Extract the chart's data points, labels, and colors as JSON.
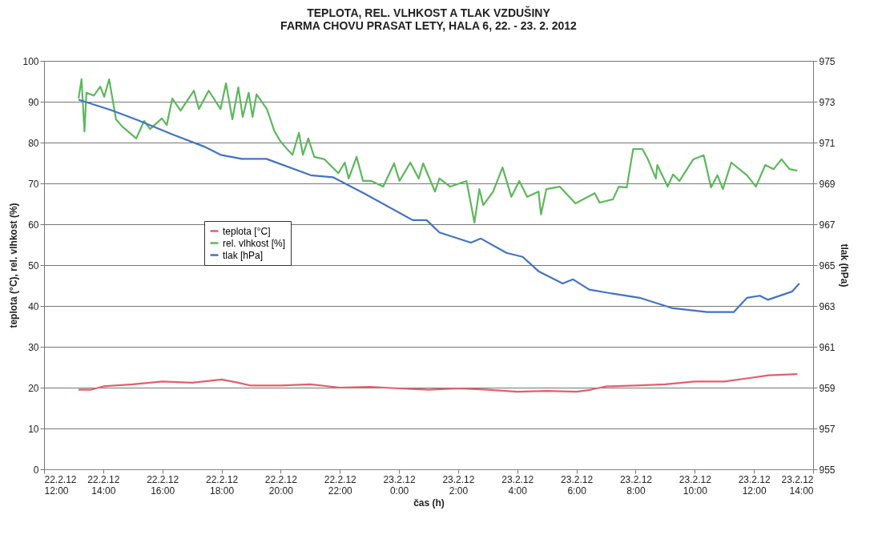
{
  "chart_data": {
    "type": "line",
    "title": [
      "TEPLOTA, REL. VLHKOST A TLAK VZDUŠINY",
      "FARMA CHOVU PRASAT LETY, HALA 6,  22. - 23. 2. 2012"
    ],
    "xlabel": "čas (h)",
    "ylabel": "teplota (°C), rel. vlhkost (%)",
    "y2label": "tlak (hPa)",
    "xlim": [
      "2012-02-22T12:00",
      "2012-02-23T14:00"
    ],
    "xticks": [
      {
        "value": "2012-02-22T12:00",
        "label": "22.2.12\n12:00"
      },
      {
        "value": "2012-02-22T14:00",
        "label": "22.2.12\n14:00"
      },
      {
        "value": "2012-02-22T16:00",
        "label": "22.2.12\n16:00"
      },
      {
        "value": "2012-02-22T18:00",
        "label": "22.2.12\n18:00"
      },
      {
        "value": "2012-02-22T20:00",
        "label": "22.2.12\n20:00"
      },
      {
        "value": "2012-02-22T22:00",
        "label": "22.2.12\n22:00"
      },
      {
        "value": "2012-02-23T00:00",
        "label": "23.2.12\n0:00"
      },
      {
        "value": "2012-02-23T02:00",
        "label": "23.2.12\n2:00"
      },
      {
        "value": "2012-02-23T04:00",
        "label": "23.2.12\n4:00"
      },
      {
        "value": "2012-02-23T06:00",
        "label": "23.2.12\n6:00"
      },
      {
        "value": "2012-02-23T08:00",
        "label": "23.2.12\n8:00"
      },
      {
        "value": "2012-02-23T10:00",
        "label": "23.2.12\n10:00"
      },
      {
        "value": "2012-02-23T12:00",
        "label": "23.2.12\n12:00"
      },
      {
        "value": "2012-02-23T14:00",
        "label": "23.2.12\n14:00"
      }
    ],
    "ylim": [
      0,
      100
    ],
    "yticks": [
      0,
      10,
      20,
      30,
      40,
      50,
      60,
      70,
      80,
      90,
      100
    ],
    "y2lim": [
      955,
      975
    ],
    "y2ticks": [
      955,
      957,
      959,
      961,
      963,
      965,
      967,
      969,
      971,
      973,
      975
    ],
    "grid": "y",
    "legend": "left",
    "line_style": "solid",
    "marker": "none",
    "series": [
      {
        "name": "teplota [°C]",
        "color": "#e0606e",
        "x": [
          "2012-02-22T13:10",
          "2012-02-22T13:36",
          "2012-02-22T14:00",
          "2012-02-22T15:00",
          "2012-02-22T16:00",
          "2012-02-22T17:00",
          "2012-02-22T18:00",
          "2012-02-22T18:30",
          "2012-02-22T19:00",
          "2012-02-22T20:00",
          "2012-02-22T21:00",
          "2012-02-22T22:00",
          "2012-02-22T23:00",
          "2012-02-23T00:00",
          "2012-02-23T01:00",
          "2012-02-23T02:00",
          "2012-02-23T03:00",
          "2012-02-23T04:00",
          "2012-02-23T05:00",
          "2012-02-23T06:00",
          "2012-02-23T06:30",
          "2012-02-23T07:00",
          "2012-02-23T08:00",
          "2012-02-23T09:00",
          "2012-02-23T10:00",
          "2012-02-23T11:00",
          "2012-02-23T12:00",
          "2012-02-23T12:30",
          "2012-02-23T13:28"
        ],
        "values": [
          19.5,
          19.5,
          20.3,
          20.8,
          21.5,
          21.2,
          22,
          21.3,
          20.5,
          20.5,
          20.8,
          20,
          20.2,
          19.8,
          19.5,
          19.8,
          19.5,
          19,
          19.2,
          19,
          19.5,
          20.3,
          20.5,
          20.8,
          21.5,
          21.5,
          22.5,
          23,
          23.3
        ]
      },
      {
        "name": "rel. vlhkost [%]",
        "color": "#5cb85c",
        "x": [
          "2012-02-22T13:10",
          "2012-02-22T13:16",
          "2012-02-22T13:22",
          "2012-02-22T13:26",
          "2012-02-22T13:41",
          "2012-02-22T13:54",
          "2012-02-22T14:02",
          "2012-02-22T14:12",
          "2012-02-22T14:26",
          "2012-02-22T14:38",
          "2012-02-22T15:07",
          "2012-02-22T15:23",
          "2012-02-22T15:35",
          "2012-02-22T15:59",
          "2012-02-22T16:09",
          "2012-02-22T16:20",
          "2012-02-22T16:37",
          "2012-02-22T17:04",
          "2012-02-22T17:14",
          "2012-02-22T17:34",
          "2012-02-22T17:58",
          "2012-02-22T18:09",
          "2012-02-22T18:22",
          "2012-02-22T18:34",
          "2012-02-22T18:43",
          "2012-02-22T18:55",
          "2012-02-22T19:03",
          "2012-02-22T19:11",
          "2012-02-22T19:32",
          "2012-02-22T19:47",
          "2012-02-22T19:59",
          "2012-02-22T20:13",
          "2012-02-22T20:24",
          "2012-02-22T20:37",
          "2012-02-22T20:45",
          "2012-02-22T20:56",
          "2012-02-22T21:08",
          "2012-02-22T21:29",
          "2012-02-22T21:57",
          "2012-02-22T22:10",
          "2012-02-22T22:18",
          "2012-02-22T22:34",
          "2012-02-22T22:47",
          "2012-02-22T23:04",
          "2012-02-22T23:28",
          "2012-02-22T23:50",
          "2012-02-23T00:01",
          "2012-02-23T00:23",
          "2012-02-23T00:40",
          "2012-02-23T00:49",
          "2012-02-23T01:13",
          "2012-02-23T01:22",
          "2012-02-23T01:44",
          "2012-02-23T02:17",
          "2012-02-23T02:33",
          "2012-02-23T02:43",
          "2012-02-23T02:51",
          "2012-02-23T03:11",
          "2012-02-23T03:30",
          "2012-02-23T03:48",
          "2012-02-23T04:04",
          "2012-02-23T04:20",
          "2012-02-23T04:43",
          "2012-02-23T04:48",
          "2012-02-23T04:59",
          "2012-02-23T05:26",
          "2012-02-23T05:58",
          "2012-02-23T06:37",
          "2012-02-23T06:47",
          "2012-02-23T07:14",
          "2012-02-23T07:26",
          "2012-02-23T07:42",
          "2012-02-23T07:55",
          "2012-02-23T08:14",
          "2012-02-23T08:25",
          "2012-02-23T08:41",
          "2012-02-23T08:44",
          "2012-02-23T09:05",
          "2012-02-23T09:16",
          "2012-02-23T09:29",
          "2012-02-23T09:57",
          "2012-02-23T10:18",
          "2012-02-23T10:33",
          "2012-02-23T10:46",
          "2012-02-23T10:57",
          "2012-02-23T11:14",
          "2012-02-23T11:46",
          "2012-02-23T12:04",
          "2012-02-23T12:23",
          "2012-02-23T12:40",
          "2012-02-23T12:56",
          "2012-02-23T13:12",
          "2012-02-23T13:28"
        ],
        "values": [
          90.8,
          95.5,
          82.7,
          92.2,
          91.5,
          93.7,
          91.2,
          95.5,
          85.7,
          84,
          81,
          85.3,
          83.3,
          85.9,
          84.3,
          90.8,
          87.8,
          92.7,
          88.2,
          92.7,
          88.2,
          94.5,
          85.7,
          93.5,
          86.3,
          92.2,
          86.3,
          91.8,
          88.2,
          82.9,
          80.4,
          78.4,
          77,
          82.4,
          77,
          81,
          76.5,
          75.9,
          72.5,
          75.1,
          71.2,
          76.5,
          70.6,
          70.6,
          69.2,
          74.9,
          70.6,
          75.1,
          71.2,
          74.9,
          68,
          71.2,
          69.2,
          70.6,
          60.4,
          68.6,
          64.7,
          68,
          73.9,
          66.7,
          70.6,
          66.7,
          68,
          62.4,
          68.6,
          69.2,
          65.1,
          67.6,
          65.3,
          66.1,
          69.2,
          69,
          78.4,
          78.4,
          75.9,
          71.2,
          74.5,
          69.2,
          72.2,
          70.6,
          75.9,
          76.9,
          69,
          72,
          68.6,
          75.1,
          72,
          69.2,
          74.5,
          73.5,
          75.9,
          73.5,
          73.1
        ]
      },
      {
        "name": "tlak [hPa]",
        "color": "#4472c4",
        "axis": "y2",
        "x": [
          "2012-02-22T13:10",
          "2012-02-22T14:15",
          "2012-02-22T15:10",
          "2012-02-22T16:20",
          "2012-02-22T17:25",
          "2012-02-22T17:58",
          "2012-02-22T18:41",
          "2012-02-22T19:31",
          "2012-02-22T21:01",
          "2012-02-22T21:46",
          "2012-02-22T22:50",
          "2012-02-23T00:28",
          "2012-02-23T00:56",
          "2012-02-23T01:22",
          "2012-02-23T02:26",
          "2012-02-23T02:46",
          "2012-02-23T03:38",
          "2012-02-23T04:11",
          "2012-02-23T04:43",
          "2012-02-23T05:32",
          "2012-02-23T05:53",
          "2012-02-23T06:26",
          "2012-02-23T07:14",
          "2012-02-23T08:08",
          "2012-02-23T09:13",
          "2012-02-23T10:25",
          "2012-02-23T11:19",
          "2012-02-23T11:46",
          "2012-02-23T12:12",
          "2012-02-23T12:28",
          "2012-02-23T13:17",
          "2012-02-23T13:32"
        ],
        "values": [
          973.1,
          972.6,
          972.1,
          971.4,
          970.8,
          970.4,
          970.2,
          970.2,
          969.4,
          969.3,
          968.5,
          967.2,
          967.2,
          966.6,
          966.1,
          966.3,
          965.6,
          965.4,
          964.7,
          964.1,
          964.3,
          963.8,
          963.6,
          963.4,
          962.9,
          962.7,
          962.7,
          963.4,
          963.5,
          963.3,
          963.7,
          964.1
        ]
      }
    ]
  }
}
